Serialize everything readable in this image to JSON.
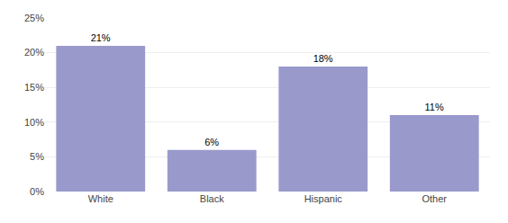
{
  "chart_data": {
    "type": "bar",
    "categories": [
      "White",
      "Black",
      "Hispanic",
      "Other"
    ],
    "values": [
      21,
      6,
      18,
      11
    ],
    "value_labels": [
      "21%",
      "6%",
      "18%",
      "11%"
    ],
    "data_labels": true,
    "color": "#9999cc",
    "ylim": [
      0,
      25
    ],
    "yticks": [
      {
        "value": 0,
        "label": "0%"
      },
      {
        "value": 5,
        "label": "5%"
      },
      {
        "value": 10,
        "label": "10%"
      },
      {
        "value": 15,
        "label": "15%"
      },
      {
        "value": 20,
        "label": "20%"
      },
      {
        "value": 25,
        "label": "25%"
      }
    ],
    "grid": true
  }
}
